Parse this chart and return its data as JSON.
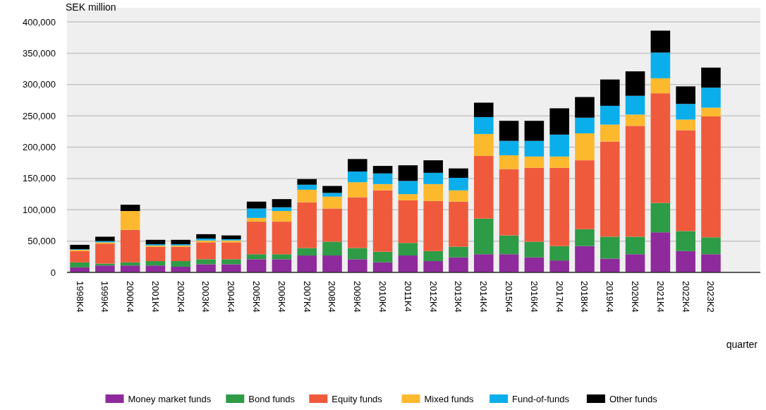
{
  "chart_data": {
    "type": "bar",
    "stacked": true,
    "ylabel": "SEK million",
    "xlabel": "quarter",
    "categories": [
      "1998K4",
      "1999K4",
      "2000K4",
      "2001K4",
      "2002K4",
      "2003K4",
      "2004K4",
      "2005K4",
      "2006K4",
      "2007K4",
      "2008K4",
      "2009K4",
      "2010K4",
      "2011K4",
      "2012K4",
      "2013K4",
      "2014K4",
      "2015K4",
      "2016K4",
      "2017K4",
      "2018K4",
      "2019K4",
      "2020K4",
      "2021K4",
      "2022K4",
      "2023K2"
    ],
    "series": [
      {
        "name": "Money market funds",
        "color": "#8e2a9b",
        "values": [
          8000,
          11000,
          11000,
          11000,
          9000,
          13000,
          13000,
          21000,
          21000,
          27000,
          27000,
          21000,
          16000,
          27000,
          18000,
          24000,
          29000,
          29000,
          24000,
          19000,
          42000,
          22000,
          29000,
          64000,
          34000,
          29000
        ]
      },
      {
        "name": "Bond funds",
        "color": "#2e9b46",
        "values": [
          8000,
          3000,
          5000,
          7000,
          9000,
          8000,
          8000,
          8000,
          8000,
          12000,
          22000,
          18000,
          17000,
          20000,
          16000,
          17000,
          57000,
          30000,
          25000,
          23000,
          27000,
          35000,
          28000,
          47000,
          32000,
          27000
        ]
      },
      {
        "name": "Equity funds",
        "color": "#f05a3c",
        "values": [
          18000,
          32000,
          52000,
          23000,
          23000,
          27000,
          27000,
          52000,
          52000,
          73000,
          53000,
          81000,
          98000,
          68000,
          80000,
          72000,
          100000,
          106000,
          118000,
          125000,
          110000,
          152000,
          177000,
          175000,
          161000,
          193000
        ]
      },
      {
        "name": "Mixed funds",
        "color": "#fdb92e",
        "values": [
          2000,
          2000,
          30000,
          2000,
          2000,
          3000,
          3000,
          6000,
          17000,
          20000,
          19000,
          24000,
          10000,
          10000,
          27000,
          18000,
          35000,
          22000,
          18000,
          18000,
          43000,
          27000,
          18000,
          24000,
          17000,
          14000
        ]
      },
      {
        "name": "Fund-of-funds",
        "color": "#0aaeea",
        "values": [
          1000,
          2000,
          0,
          2000,
          2000,
          3000,
          2000,
          15000,
          6000,
          8000,
          6000,
          17000,
          17000,
          21000,
          18000,
          20000,
          27000,
          23000,
          25000,
          35000,
          25000,
          30000,
          30000,
          41000,
          25000,
          32000
        ]
      },
      {
        "name": "Other funds",
        "color": "#000000",
        "values": [
          7000,
          7000,
          10000,
          7000,
          7000,
          7000,
          6000,
          11000,
          13000,
          9000,
          11000,
          20000,
          12000,
          25000,
          20000,
          15000,
          23000,
          32000,
          32000,
          42000,
          33000,
          42000,
          39000,
          35000,
          28000,
          32000
        ]
      }
    ],
    "ylim": [
      0,
      400000
    ],
    "yticks": [
      {
        "value": 0,
        "label": "0"
      },
      {
        "value": 50000,
        "label": "50,000"
      },
      {
        "value": 100000,
        "label": "100,000"
      },
      {
        "value": 150000,
        "label": "150,000"
      },
      {
        "value": 200000,
        "label": "200,000"
      },
      {
        "value": 250000,
        "label": "250,000"
      },
      {
        "value": 300000,
        "label": "300,000"
      },
      {
        "value": 350000,
        "label": "350,000"
      },
      {
        "value": 400000,
        "label": "400,000"
      }
    ],
    "grid": "y",
    "legend": "bottom"
  }
}
